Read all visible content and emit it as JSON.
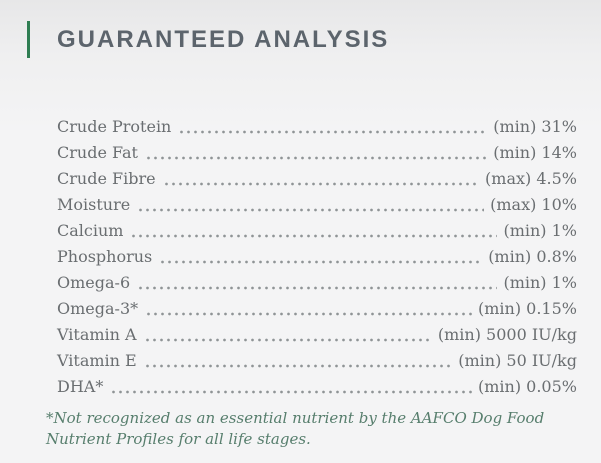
{
  "header": {
    "title": "GUARANTEED ANALYSIS"
  },
  "colors": {
    "accent_green": "#2e7d52",
    "title_gray": "#5c646c",
    "row_text": "#6a6e71",
    "dots": "#8f9496",
    "footnote_green": "#577e6d"
  },
  "analysis_rows": [
    {
      "label": "Crude Protein",
      "qualifier": "(min)",
      "value": "31%"
    },
    {
      "label": "Crude Fat",
      "qualifier": "(min)",
      "value": "14%"
    },
    {
      "label": "Crude Fibre",
      "qualifier": "(max)",
      "value": "4.5%"
    },
    {
      "label": "Moisture",
      "qualifier": "(max)",
      "value": "10%"
    },
    {
      "label": "Calcium",
      "qualifier": "(min)",
      "value": "1%"
    },
    {
      "label": "Phosphorus",
      "qualifier": "(min)",
      "value": "0.8%"
    },
    {
      "label": "Omega-6",
      "qualifier": "(min)",
      "value": "1%"
    },
    {
      "label": "Omega-3*",
      "qualifier": "(min)",
      "value": "0.15%"
    },
    {
      "label": "Vitamin A",
      "qualifier": "(min)",
      "value": "5000 IU/kg"
    },
    {
      "label": "Vitamin E",
      "qualifier": "(min)",
      "value": "50 IU/kg"
    },
    {
      "label": "DHA*",
      "qualifier": "(min)",
      "value": "0.05%"
    }
  ],
  "footnote": "*Not recognized as an essential nutrient by the AAFCO Dog Food Nutrient Profiles for all life stages."
}
